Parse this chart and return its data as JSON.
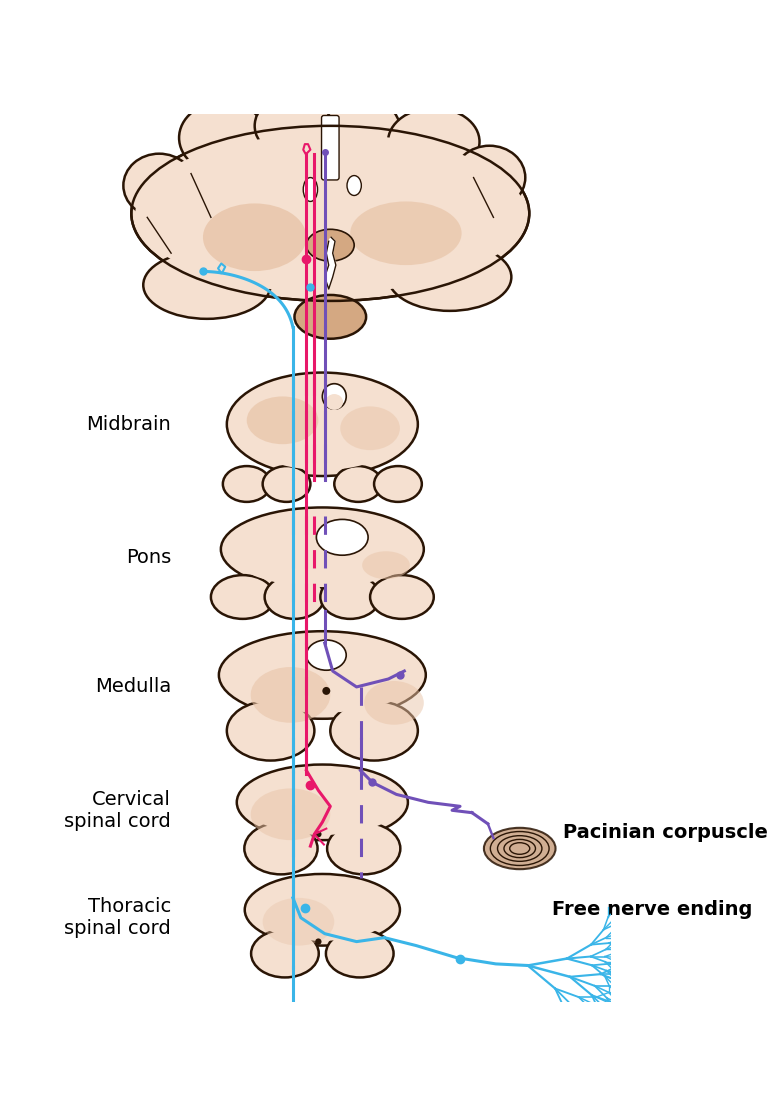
{
  "bg_color": "#ffffff",
  "skin_fill": "#f5e0d0",
  "skin_dark": "#e8c4a8",
  "skin_darker": "#c8a080",
  "skin_stem": "#d4a882",
  "outline_color": "#2a1505",
  "pink_line": "#e8186a",
  "blue_line": "#3ab5e8",
  "purple_line": "#7050b8",
  "labels": {
    "midbrain": "Midbrain",
    "pons": "Pons",
    "medulla": "Medulla",
    "cervical": "Cervical\nspinal cord",
    "thoracic": "Thoracic\nspinal cord",
    "pacinian": "Pacinian corpuscle",
    "free_nerve": "Free nerve ending"
  },
  "label_fontsize": 14
}
